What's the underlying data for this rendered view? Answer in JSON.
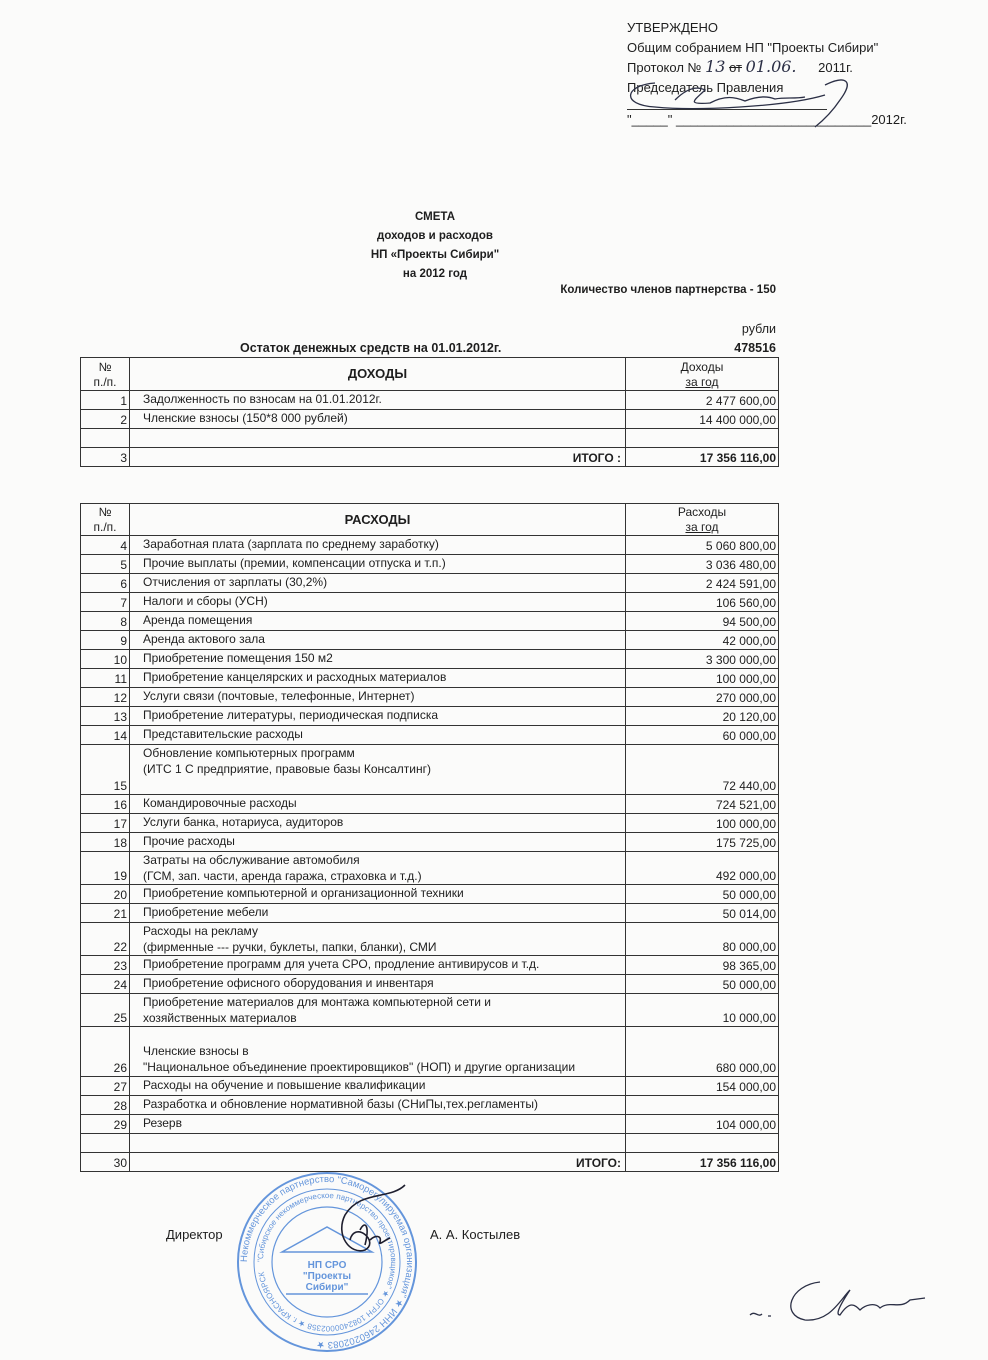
{
  "approval": {
    "line1": "УТВЕРЖДЕНО",
    "line2": "Общим собранием НП \"Проекты Сибири\"",
    "protocol_prefix": "Протокол №",
    "protocol_number": "13",
    "protocol_from": "от",
    "protocol_date": "01.06.",
    "protocol_year": "2011г.",
    "chairman": "Председатель Правления",
    "date_line": "\"_____\" ___________________________2012г."
  },
  "title": {
    "line1": "СМЕТА",
    "line2": "доходов и расходов",
    "line3": "НП «Проекты Сибири\"",
    "line4": "на 2012 год"
  },
  "members_count": "Количество членов партнерства - 150",
  "currency": "рубли",
  "balance": {
    "label": "Остаток денежных средств на 01.01.2012г.",
    "value": "478516"
  },
  "income": {
    "header": {
      "num": [
        "№",
        "п./п."
      ],
      "title": "ДОХОДЫ",
      "value": [
        "Доходы",
        "за год"
      ]
    },
    "rows": [
      {
        "num": "1",
        "lines": [
          "Задолженность по взносам на 01.01.2012г."
        ],
        "value": "2 477 600,00"
      },
      {
        "num": "2",
        "lines": [
          "Членские взносы (150*8 000 рублей)"
        ],
        "value": "14 400 000,00"
      },
      {
        "num": "",
        "lines": [
          ""
        ],
        "value": ""
      }
    ],
    "total": {
      "num": "3",
      "label": "ИТОГО :",
      "value": "17 356 116,00"
    }
  },
  "expenses": {
    "header": {
      "num": [
        "№",
        "п./п."
      ],
      "title": "РАСХОДЫ",
      "value": [
        "Расходы",
        "за год"
      ]
    },
    "rows": [
      {
        "num": "4",
        "lines": [
          "Заработная плата (зарплата по среднему заработку)"
        ],
        "value": "5 060 800,00"
      },
      {
        "num": "5",
        "lines": [
          "Прочие выплаты (премии, компенсации отпуска и т.п.)"
        ],
        "value": "3 036 480,00"
      },
      {
        "num": "6",
        "lines": [
          "Отчисления от зарплаты (30,2%)"
        ],
        "value": "2 424 591,00"
      },
      {
        "num": "7",
        "lines": [
          "Налоги и сборы (УСН)"
        ],
        "value": "106 560,00"
      },
      {
        "num": "8",
        "lines": [
          "Аренда помещения"
        ],
        "value": "94 500,00"
      },
      {
        "num": "9",
        "lines": [
          "Аренда  актового зала"
        ],
        "value": "42 000,00"
      },
      {
        "num": "10",
        "lines": [
          "Приобретение помещения 150 м2"
        ],
        "value": "3 300 000,00"
      },
      {
        "num": "11",
        "lines": [
          "Приобретение канцелярских и расходных материалов"
        ],
        "value": "100 000,00"
      },
      {
        "num": "12",
        "lines": [
          "Услуги связи (почтовые, телефонные, Интернет)"
        ],
        "value": "270 000,00"
      },
      {
        "num": "13",
        "lines": [
          "Приобретение литературы, периодическая подписка"
        ],
        "value": "20 120,00"
      },
      {
        "num": "14",
        "lines": [
          "Представительские расходы"
        ],
        "value": "60 000,00"
      },
      {
        "num": "15",
        "lines": [
          "Обновление компьютерных программ",
          "(ИТС 1 С предприятие, правовые базы Консалтинг)",
          ""
        ],
        "value": "72 440,00"
      },
      {
        "num": "16",
        "lines": [
          "Командировочные расходы"
        ],
        "value": "724 521,00"
      },
      {
        "num": "17",
        "lines": [
          "Услуги банка, нотариуса, аудиторов"
        ],
        "value": "100 000,00"
      },
      {
        "num": "18",
        "lines": [
          "Прочие  расходы"
        ],
        "value": "175 725,00"
      },
      {
        "num": "19",
        "lines": [
          "Затраты на обслуживание автомобиля",
          "(ГСМ, зап. части, аренда гаража, страховка и т.д.)"
        ],
        "value": "492 000,00"
      },
      {
        "num": "20",
        "lines": [
          "Приобретение компьютерной и организационной техники"
        ],
        "value": "50 000,00"
      },
      {
        "num": "21",
        "lines": [
          "Приобретение мебели"
        ],
        "value": "50 014,00"
      },
      {
        "num": "22",
        "lines": [
          "Расходы на рекламу",
          "(фирменные --- ручки, буклеты, папки, бланки), СМИ"
        ],
        "value": "80 000,00"
      },
      {
        "num": "23",
        "lines": [
          "Приобретение программ для учета СРО, продление антивирусов и т.д."
        ],
        "value": "98 365,00"
      },
      {
        "num": "24",
        "lines": [
          "Приобретение офисного оборудования и инвентаря"
        ],
        "value": "50 000,00"
      },
      {
        "num": "25",
        "lines": [
          "Приобретение материалов для монтажа компьютерной сети и",
          "хозяйственных материалов"
        ],
        "value": "10 000,00"
      },
      {
        "num": "26",
        "lines": [
          "",
          "Членские взносы в",
          "\"Национальное объединение проектировщиков\" (НОП) и другие организации"
        ],
        "value": "680 000,00"
      },
      {
        "num": "27",
        "lines": [
          "Расходы на обучение и повышение квалификации"
        ],
        "value": "154 000,00"
      },
      {
        "num": "28",
        "lines": [
          "Разработка и обновление нормативной базы (СНиПы,тех.регламенты)"
        ],
        "value": ""
      },
      {
        "num": "29",
        "lines": [
          "Резерв"
        ],
        "value": "104 000,00"
      },
      {
        "num": "",
        "lines": [
          ""
        ],
        "value": ""
      }
    ],
    "total": {
      "num": "30",
      "label": "ИТОГО:",
      "value": "17 356 116,00"
    }
  },
  "signature": {
    "role": "Директор",
    "name": "А. А. Костылев"
  },
  "stamp": {
    "outer_text": "Некоммерческое партнерство \"Саморегулируемая организация\" ★ ИНН 2460202083 ★",
    "inner_text": "\"Сибирское некоммерческое партнерство проектировщиков\" ★ ОГРН 1082400002358 ★ г. КРАСНОЯРСК",
    "center_lines": [
      "НП СРО",
      "\"Проекты",
      "Сибири\""
    ]
  },
  "colors": {
    "ink": "#1e1e1e",
    "stamp": "#4a84d6",
    "pen": "#2b2f45"
  }
}
